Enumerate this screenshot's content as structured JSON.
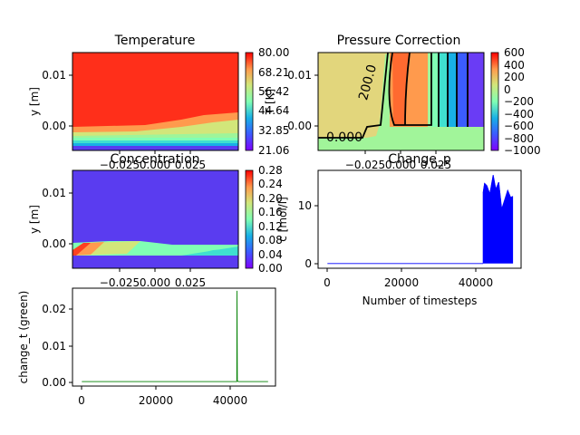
{
  "chart_data": [
    {
      "id": "temperature",
      "type": "heatmap",
      "title": "Temperature",
      "ylabel": "y [m]",
      "x_ticks": [
        "−0.025",
        "0.000",
        "0.025"
      ],
      "y_ticks": [
        "0.01",
        "0.00"
      ],
      "colorbar_label": "T [K]",
      "colorbar_ticks": [
        "80.00",
        "68.21",
        "56.42",
        "44.64",
        "32.85",
        "21.06"
      ],
      "colormap": "rainbow",
      "range": [
        21.06,
        80.0
      ]
    },
    {
      "id": "pressure",
      "type": "heatmap",
      "title": "Pressure Correction",
      "y_ticks": [
        "0.01",
        "0.00"
      ],
      "x_ticks": [
        "−0.025",
        "0.000",
        "0.025"
      ],
      "colorbar_ticks": [
        "600",
        "400",
        "200",
        "0",
        "−200",
        "−400",
        "−600",
        "−800",
        "−1000"
      ],
      "contour_labels": [
        "200.0",
        "0.000"
      ],
      "colormap": "rainbow",
      "range": [
        -1000,
        600
      ]
    },
    {
      "id": "concentration",
      "type": "heatmap",
      "title": "Concentration",
      "ylabel": "y [m]",
      "x_ticks": [
        "−0.025",
        "0.000",
        "0.025"
      ],
      "y_ticks": [
        "0.01",
        "0.00"
      ],
      "colorbar_label": "c [mol/l]",
      "colorbar_ticks": [
        "0.28",
        "0.24",
        "0.20",
        "0.16",
        "0.12",
        "0.08",
        "0.04",
        "0.00"
      ],
      "colormap": "rainbow",
      "range": [
        0.0,
        0.28
      ]
    },
    {
      "id": "change_p",
      "type": "line",
      "title": "Change_p",
      "xlabel": "Number of timesteps",
      "x_ticks": [
        "0",
        "20000",
        "40000"
      ],
      "y_ticks": [
        "10",
        "0"
      ],
      "xlim": [
        -2500,
        52000
      ],
      "ylim": [
        -0.8,
        15.8
      ],
      "color": "#0000ff",
      "series": [
        {
          "x": [
            0,
            20000,
            40000,
            41800
          ],
          "y": [
            0,
            0,
            0,
            0
          ]
        },
        {
          "x": [
            41800,
            42200,
            42800,
            43600,
            44500,
            45200,
            46000,
            46800,
            47600,
            48400,
            49200,
            49800
          ],
          "y": [
            12.0,
            13.6,
            13.2,
            11.8,
            15.0,
            12.6,
            13.8,
            9.2,
            10.8,
            12.4,
            11.2,
            11.4
          ]
        }
      ]
    },
    {
      "id": "change_t",
      "type": "line",
      "ylabel": "change_t (green)",
      "x_ticks": [
        "0",
        "20000",
        "40000"
      ],
      "y_ticks": [
        "0.02",
        "0.01",
        "0.00"
      ],
      "xlim": [
        -2500,
        52000
      ],
      "ylim": [
        -0.0012,
        0.0252
      ],
      "color": "#008000",
      "series": [
        {
          "x": [
            0,
            20000,
            40000,
            41600,
            41650,
            41750,
            42000,
            45000,
            50000
          ],
          "y": [
            0.0,
            0.0,
            0.0,
            0.0,
            0.0245,
            0.0003,
            0.0,
            0.0,
            0.0
          ]
        }
      ]
    }
  ]
}
